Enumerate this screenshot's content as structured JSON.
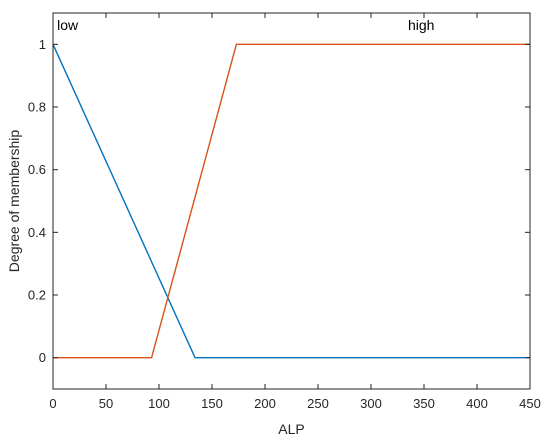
{
  "chart_data": {
    "type": "line",
    "xlabel": "ALP",
    "ylabel": "Degree of membership",
    "xlim": [
      0,
      450
    ],
    "ylim": [
      -0.1,
      1.1
    ],
    "xticks": [
      0,
      50,
      100,
      150,
      200,
      250,
      300,
      350,
      400,
      450
    ],
    "yticks": [
      0,
      0.2,
      0.4,
      0.6,
      0.8,
      1
    ],
    "ytick_labels": [
      "0",
      "0.2",
      "0.4",
      "0.6",
      "0.8",
      "1"
    ],
    "grid": false,
    "series": [
      {
        "name": "low",
        "color": "#0072BD",
        "x": [
          0,
          134,
          450
        ],
        "y": [
          1,
          0,
          0
        ]
      },
      {
        "name": "high",
        "color": "#D95319",
        "x": [
          0,
          93,
          173,
          450
        ],
        "y": [
          0,
          0,
          1,
          1
        ]
      }
    ],
    "annotations": [
      {
        "text": "low",
        "x": 2,
        "y": 1.045
      },
      {
        "text": "high",
        "x": 333,
        "y": 1.045
      }
    ]
  }
}
